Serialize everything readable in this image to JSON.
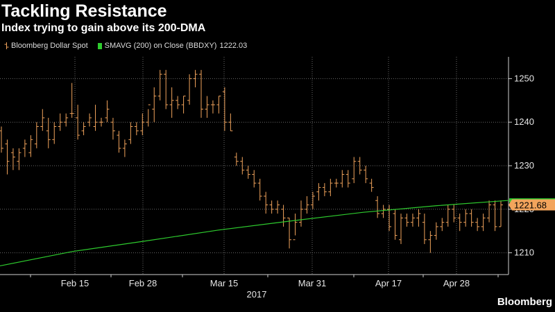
{
  "header": {
    "title": "Tackling Resistance",
    "subtitle": "Index trying to gain above its 200-DMA"
  },
  "legend": {
    "items": [
      {
        "label": "Bloomberg Dollar Spot",
        "color": "#f2a45c"
      },
      {
        "label": "SMAVG (200) on Close (BBDXY)",
        "color": "#2ecc2e",
        "value": "1222.03"
      }
    ]
  },
  "brand": "Bloomberg",
  "chart_data": {
    "type": "line",
    "ylim": [
      1205,
      1255
    ],
    "yticks": [
      1210,
      1220,
      1230,
      1240,
      1250
    ],
    "xticks": [
      "Feb 15",
      "Feb 28",
      "Mar 15",
      "Mar 31",
      "Apr 17",
      "Apr 28"
    ],
    "year_label": "2017",
    "last_price_label": "1221.68",
    "series": [
      {
        "name": "Bloomberg Dollar Spot",
        "kind": "ohlc",
        "color": "#f2a45c",
        "values": [
          [
            1238,
            1239,
            1233,
            1234
          ],
          [
            1235,
            1236,
            1228,
            1231
          ],
          [
            1233,
            1234,
            1229,
            1232
          ],
          [
            1231,
            1234,
            1229,
            1233
          ],
          [
            1234,
            1236,
            1232,
            1235
          ],
          [
            1233,
            1237,
            1232,
            1236
          ],
          [
            1235,
            1240,
            1234,
            1239
          ],
          [
            1239,
            1243,
            1238,
            1241
          ],
          [
            1238,
            1241,
            1234,
            1236
          ],
          [
            1236,
            1240,
            1235,
            1239
          ],
          [
            1239,
            1242,
            1238,
            1240
          ],
          [
            1240,
            1242,
            1239,
            1241
          ],
          [
            1242,
            1249,
            1241,
            1242
          ],
          [
            1241,
            1244,
            1236,
            1237
          ],
          [
            1238,
            1240,
            1237,
            1239
          ],
          [
            1240,
            1242,
            1239,
            1241
          ],
          [
            1239,
            1244,
            1238,
            1240
          ],
          [
            1240,
            1241,
            1239,
            1240
          ],
          [
            1241,
            1245,
            1240,
            1243
          ],
          [
            1240,
            1241,
            1236,
            1238
          ],
          [
            1237,
            1238,
            1233,
            1234
          ],
          [
            1234,
            1236,
            1232,
            1235
          ],
          [
            1236,
            1240,
            1235,
            1239
          ],
          [
            1239,
            1240,
            1237,
            1238
          ],
          [
            1238,
            1242,
            1237,
            1240
          ],
          [
            1240,
            1243,
            1239,
            1244
          ],
          [
            1243,
            1248,
            1240,
            1246
          ],
          [
            1246,
            1252,
            1245,
            1251
          ],
          [
            1251,
            1252,
            1243,
            1244
          ],
          [
            1244,
            1248,
            1241,
            1245
          ],
          [
            1245,
            1246,
            1243,
            1244
          ],
          [
            1244,
            1246,
            1242,
            1246
          ],
          [
            1245,
            1251,
            1244,
            1250
          ],
          [
            1250,
            1252,
            1248,
            1251
          ],
          [
            1251,
            1252,
            1241,
            1243
          ],
          [
            1243,
            1246,
            1241,
            1244
          ],
          [
            1244,
            1245,
            1242,
            1244
          ],
          [
            1244,
            1246,
            1242,
            1246
          ],
          [
            1247,
            1248,
            1238,
            1240
          ],
          [
            1240,
            1242,
            1238,
            1238
          ],
          [
            1232,
            1233,
            1230,
            1231
          ],
          [
            1231,
            1232,
            1228,
            1229
          ],
          [
            1229,
            1230,
            1227,
            1228
          ],
          [
            1228,
            1229,
            1225,
            1226
          ],
          [
            1226,
            1227,
            1222,
            1223
          ],
          [
            1223,
            1224,
            1219,
            1221
          ],
          [
            1221,
            1222,
            1219,
            1220
          ],
          [
            1220,
            1222,
            1219,
            1221
          ],
          [
            1220,
            1221,
            1216,
            1218
          ],
          [
            1218,
            1218,
            1211,
            1213
          ],
          [
            1213,
            1219,
            1214,
            1217
          ],
          [
            1217,
            1222,
            1216,
            1220
          ],
          [
            1220,
            1223,
            1219,
            1221
          ],
          [
            1221,
            1224,
            1220,
            1223
          ],
          [
            1224,
            1226,
            1222,
            1225
          ],
          [
            1225,
            1226,
            1223,
            1224
          ],
          [
            1224,
            1227,
            1223,
            1226
          ],
          [
            1226,
            1227,
            1225,
            1226
          ],
          [
            1226,
            1229,
            1225,
            1228
          ],
          [
            1228,
            1229,
            1225,
            1226
          ],
          [
            1227,
            1232,
            1226,
            1231
          ],
          [
            1231,
            1232,
            1228,
            1229
          ],
          [
            1229,
            1230,
            1226,
            1227
          ],
          [
            1226,
            1227,
            1224,
            1225
          ],
          [
            1222,
            1223,
            1218,
            1219
          ],
          [
            1219,
            1221,
            1218,
            1220
          ],
          [
            1220,
            1221,
            1215,
            1216
          ],
          [
            1219,
            1220,
            1213,
            1214
          ],
          [
            1213,
            1219,
            1212,
            1218
          ],
          [
            1218,
            1219,
            1216,
            1217
          ],
          [
            1217,
            1219,
            1216,
            1218
          ],
          [
            1218,
            1220,
            1216,
            1219
          ],
          [
            1217,
            1219,
            1212,
            1213
          ],
          [
            1213,
            1215,
            1210,
            1214
          ],
          [
            1214,
            1217,
            1213,
            1216
          ],
          [
            1216,
            1218,
            1215,
            1217
          ],
          [
            1217,
            1221,
            1216,
            1220
          ],
          [
            1220,
            1221,
            1217,
            1218
          ],
          [
            1218,
            1219,
            1215,
            1217
          ],
          [
            1217,
            1220,
            1216,
            1219
          ],
          [
            1219,
            1220,
            1216,
            1217
          ],
          [
            1217,
            1218,
            1215,
            1216
          ],
          [
            1216,
            1219,
            1215,
            1218
          ],
          [
            1218,
            1222,
            1217,
            1221
          ],
          [
            1221,
            1222,
            1215,
            1216
          ],
          [
            1216,
            1222,
            1216,
            1221
          ]
        ]
      },
      {
        "name": "SMAVG (200) on Close (BBDXY)",
        "kind": "line",
        "color": "#2ecc2e",
        "values": [
          1207.0,
          1210.3,
          1212.7,
          1215.2,
          1217.3,
          1219.3,
          1220.8,
          1222.03
        ]
      }
    ]
  }
}
